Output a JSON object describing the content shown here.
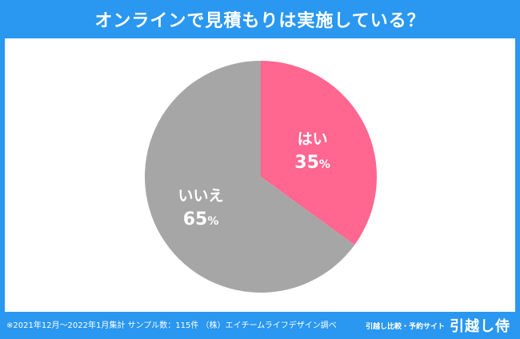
{
  "header": {
    "title": "オンラインで見積もりは実施している？"
  },
  "colors": {
    "background": "#2a97f0",
    "yes": "#ff6690",
    "no": "#a6a6a6"
  },
  "chart_data": {
    "type": "pie",
    "title": "オンラインで見積もりは実施している？",
    "slices": [
      {
        "label": "はい",
        "value": 35,
        "value_text": "35",
        "unit": "%",
        "color": "#ff6690"
      },
      {
        "label": "いいえ",
        "value": 65,
        "value_text": "65",
        "unit": "%",
        "color": "#a6a6a6"
      }
    ],
    "start_angle_deg": 0,
    "direction": "clockwise"
  },
  "footer": {
    "note": "※2021年12月〜2022年1月集計 サンプル数：115件 （株）エイチームライフデザイン調べ",
    "brand_tagline": "引越し比較・予約サイト",
    "brand_name": "引越し侍"
  }
}
